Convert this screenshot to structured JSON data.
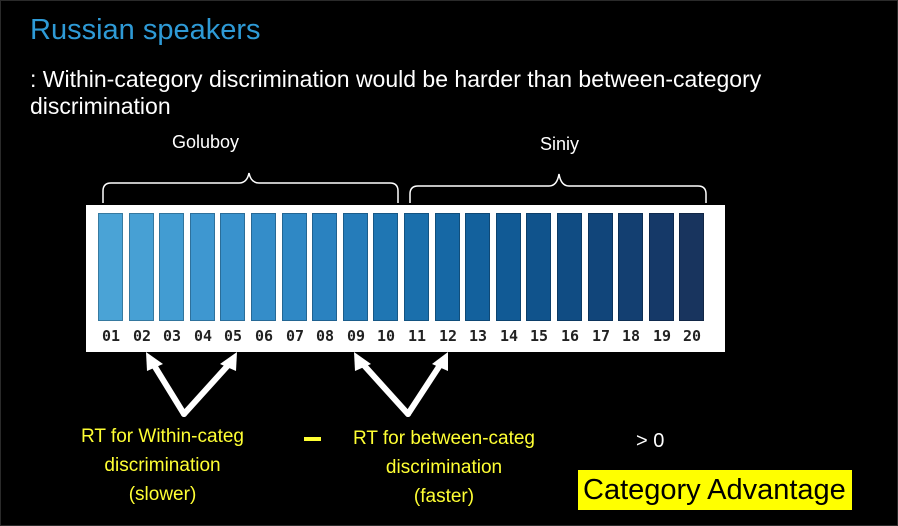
{
  "slide": {
    "title": "Russian speakers",
    "subtitle": ": Within-category discrimination would be harder than between-category discrimination"
  },
  "categories": {
    "left_label": "Goluboy",
    "right_label": "Siniy"
  },
  "swatches": [
    {
      "num": "01",
      "color": "#4aa3d6"
    },
    {
      "num": "02",
      "color": "#47a0d4"
    },
    {
      "num": "03",
      "color": "#429cd2"
    },
    {
      "num": "04",
      "color": "#3e97d0"
    },
    {
      "num": "05",
      "color": "#3992cd"
    },
    {
      "num": "06",
      "color": "#348dc9"
    },
    {
      "num": "07",
      "color": "#2f88c5"
    },
    {
      "num": "08",
      "color": "#2a82c0"
    },
    {
      "num": "09",
      "color": "#257cba"
    },
    {
      "num": "10",
      "color": "#1f76b3"
    },
    {
      "num": "11",
      "color": "#1a6fac"
    },
    {
      "num": "12",
      "color": "#1668a5"
    },
    {
      "num": "13",
      "color": "#13619d"
    },
    {
      "num": "14",
      "color": "#115a95"
    },
    {
      "num": "15",
      "color": "#10538c"
    },
    {
      "num": "16",
      "color": "#104c83"
    },
    {
      "num": "17",
      "color": "#11457a"
    },
    {
      "num": "18",
      "color": "#133f71"
    },
    {
      "num": "19",
      "color": "#153968"
    },
    {
      "num": "20",
      "color": "#18345e"
    }
  ],
  "formula": {
    "within_lines": [
      "RT for Within-categ",
      "discrimination",
      "(slower)"
    ],
    "between_lines": [
      "RT for between-categ",
      "discrimination",
      "(faster)"
    ],
    "result": "> 0",
    "conclusion": "Category Advantage"
  },
  "colors": {
    "title": "#2e9ad6",
    "highlight_text": "#ffff33",
    "conclusion_bg": "#ffff00",
    "background": "#000000"
  }
}
